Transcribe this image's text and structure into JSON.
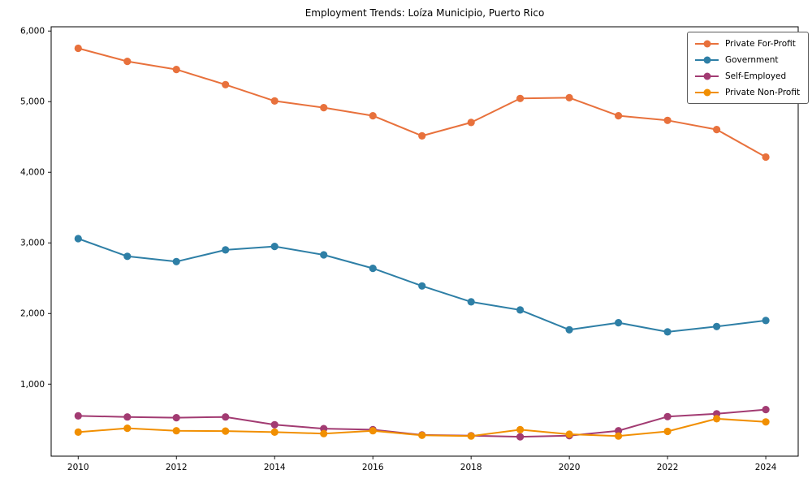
{
  "figure": {
    "background_color": "#ffffff",
    "text_color": "#000000"
  },
  "chart_data": {
    "type": "line",
    "title": "Employment Trends: Loíza Municipio, Puerto Rico",
    "xlabel": "",
    "ylabel": "",
    "grid": false,
    "legend_position": "upper right",
    "x": [
      2010,
      2011,
      2012,
      2013,
      2014,
      2015,
      2016,
      2017,
      2018,
      2019,
      2020,
      2021,
      2022,
      2023,
      2024
    ],
    "series": [
      {
        "name": "Private For-Profit",
        "color": "#E8713C",
        "values": [
          5755,
          5570,
          5455,
          5240,
          5010,
          4915,
          4800,
          4515,
          4705,
          5045,
          5055,
          4800,
          4735,
          4605,
          4215
        ]
      },
      {
        "name": "Government",
        "color": "#2E7FA6",
        "values": [
          3060,
          2810,
          2735,
          2900,
          2950,
          2830,
          2640,
          2390,
          2165,
          2050,
          1770,
          1870,
          1740,
          1815,
          1900
        ]
      },
      {
        "name": "Self-Employed",
        "color": "#A23B72",
        "values": [
          550,
          535,
          525,
          535,
          425,
          370,
          355,
          280,
          270,
          255,
          270,
          340,
          540,
          580,
          640
        ]
      },
      {
        "name": "Private Non-Profit",
        "color": "#F18F01",
        "values": [
          320,
          375,
          340,
          335,
          320,
          300,
          340,
          275,
          265,
          355,
          290,
          265,
          330,
          510,
          465
        ]
      }
    ],
    "xlim": [
      2009.45,
      2024.66
    ],
    "ylim": [
      -20,
      6060
    ],
    "xticks": [
      2010,
      2012,
      2014,
      2016,
      2018,
      2020,
      2022,
      2024
    ],
    "yticks": [
      1000,
      2000,
      3000,
      4000,
      5000,
      6000
    ],
    "ytick_labels": [
      "1,000",
      "2,000",
      "3,000",
      "4,000",
      "5,000",
      "6,000"
    ]
  }
}
